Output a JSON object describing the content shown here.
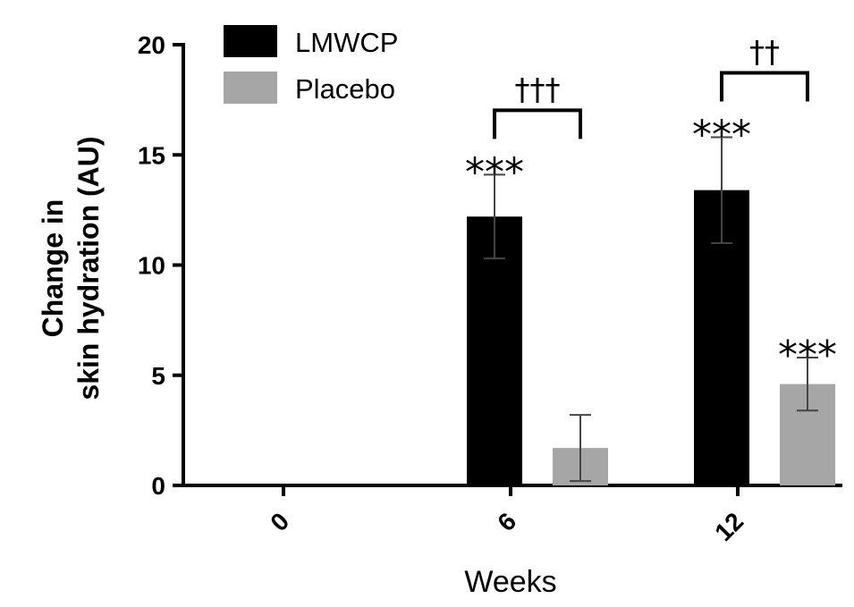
{
  "chart_data": {
    "type": "bar",
    "categories": [
      "0",
      "6",
      "12"
    ],
    "series": [
      {
        "name": "LMWCP",
        "color": "#000000",
        "values": [
          0,
          12.2,
          13.4
        ],
        "errors": [
          0,
          1.9,
          2.4
        ],
        "significance": [
          "",
          "***",
          "***"
        ]
      },
      {
        "name": "Placebo",
        "color": "#a6a6a6",
        "values": [
          0,
          1.7,
          4.6
        ],
        "errors": [
          0,
          1.5,
          1.2
        ],
        "significance": [
          "",
          "",
          "***"
        ]
      }
    ],
    "comparisons": [
      {
        "category": "6",
        "label": "†††"
      },
      {
        "category": "12",
        "label": "††"
      }
    ],
    "ylabel_line1": "Change in",
    "ylabel_line2": "skin hydration (AU)",
    "xlabel": "Weeks",
    "ylim": [
      0,
      20
    ],
    "yticks": [
      "0",
      "5",
      "10",
      "15",
      "20"
    ],
    "grid": false,
    "legend_position": "top-left"
  }
}
